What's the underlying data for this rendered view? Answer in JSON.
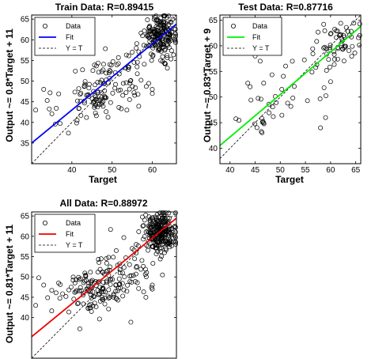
{
  "chart_data": [
    {
      "type": "scatter",
      "title": "Train Data: R=0.89415",
      "xlabel": "Target",
      "ylabel": "Output ~= 0.8*Target + 11",
      "xlim": [
        30,
        66
      ],
      "ylim": [
        30,
        66
      ],
      "xticks": [
        "40",
        "50",
        "60"
      ],
      "yticks": [
        "35",
        "40",
        "45",
        "50",
        "55",
        "60",
        "65"
      ],
      "legend": {
        "placement": "top-left",
        "entries": [
          "Data",
          "Fit",
          "Y = T"
        ]
      },
      "fit": {
        "slope": 0.8,
        "intercept": 11,
        "color": "#0000ff"
      },
      "identity_line": {
        "slope": 1,
        "intercept": 0,
        "style": "dashed"
      },
      "clusters": [
        {
          "cx": 62,
          "cy": 61,
          "sx": 2.0,
          "sy": 2.5,
          "n": 190
        },
        {
          "cx": 45,
          "cy": 46,
          "sx": 3.0,
          "sy": 3.0,
          "n": 65
        },
        {
          "cx": 50,
          "cy": 49,
          "sx": 2.5,
          "sy": 4.0,
          "n": 40
        },
        {
          "cx": 56,
          "cy": 52,
          "sx": 3.0,
          "sy": 4.0,
          "n": 25
        },
        {
          "cx": 36,
          "cy": 44,
          "sx": 3.0,
          "sy": 3.0,
          "n": 8
        }
      ],
      "points": [
        [
          56,
          58
        ],
        [
          55,
          57
        ],
        [
          60,
          47
        ],
        [
          60,
          48
        ],
        [
          33,
          48
        ],
        [
          31,
          43
        ]
      ]
    },
    {
      "type": "scatter",
      "title": "Test Data: R=0.87716",
      "xlabel": "Target",
      "ylabel": "Output ~= 0.83*Target + 9",
      "xlim": [
        38,
        66
      ],
      "ylim": [
        37,
        66
      ],
      "xticks": [
        "40",
        "45",
        "50",
        "55",
        "60",
        "65"
      ],
      "yticks": [
        "40",
        "45",
        "50",
        "55",
        "60",
        "65"
      ],
      "legend": {
        "placement": "top-left",
        "entries": [
          "Data",
          "Fit",
          "Y = T"
        ]
      },
      "fit": {
        "slope": 0.83,
        "intercept": 9,
        "color": "#00ee00"
      },
      "identity_line": {
        "slope": 1,
        "intercept": 0,
        "style": "dashed"
      },
      "clusters": [
        {
          "cx": 62,
          "cy": 61,
          "sx": 2.0,
          "sy": 2.0,
          "n": 55
        },
        {
          "cx": 47,
          "cy": 47,
          "sx": 2.0,
          "sy": 2.5,
          "n": 22
        },
        {
          "cx": 52,
          "cy": 51,
          "sx": 2.5,
          "sy": 3.0,
          "n": 12
        },
        {
          "cx": 57,
          "cy": 56,
          "sx": 2.0,
          "sy": 2.5,
          "n": 10
        }
      ],
      "points": [
        [
          45,
          58
        ],
        [
          46,
          57
        ],
        [
          58,
          44
        ],
        [
          59,
          46
        ],
        [
          60,
          53
        ],
        [
          44,
          52
        ]
      ]
    },
    {
      "type": "scatter",
      "title": "All Data: R=0.88972",
      "xlabel": "",
      "ylabel": "Output ~= 0.81*Target + 11",
      "xlim": [
        30,
        66
      ],
      "ylim": [
        30,
        66
      ],
      "xticks": [],
      "yticks": [
        "40",
        "45",
        "50",
        "55",
        "60",
        "65"
      ],
      "legend": {
        "placement": "top-left",
        "entries": [
          "Data",
          "Fit",
          "Y = T"
        ]
      },
      "fit": {
        "slope": 0.81,
        "intercept": 11,
        "color": "#ee0000"
      },
      "identity_line": {
        "slope": 1,
        "intercept": 0,
        "style": "dashed"
      },
      "clusters": [
        {
          "cx": 62,
          "cy": 61,
          "sx": 2.0,
          "sy": 2.5,
          "n": 240
        },
        {
          "cx": 45,
          "cy": 46,
          "sx": 3.0,
          "sy": 3.0,
          "n": 85
        },
        {
          "cx": 50,
          "cy": 49,
          "sx": 2.5,
          "sy": 4.0,
          "n": 55
        },
        {
          "cx": 56,
          "cy": 52,
          "sx": 3.0,
          "sy": 4.0,
          "n": 35
        },
        {
          "cx": 36,
          "cy": 44,
          "sx": 3.0,
          "sy": 3.0,
          "n": 10
        }
      ],
      "points": [
        [
          56,
          58
        ],
        [
          55,
          57
        ],
        [
          60,
          47
        ],
        [
          60,
          48
        ],
        [
          33,
          48
        ],
        [
          31,
          43
        ]
      ]
    }
  ]
}
